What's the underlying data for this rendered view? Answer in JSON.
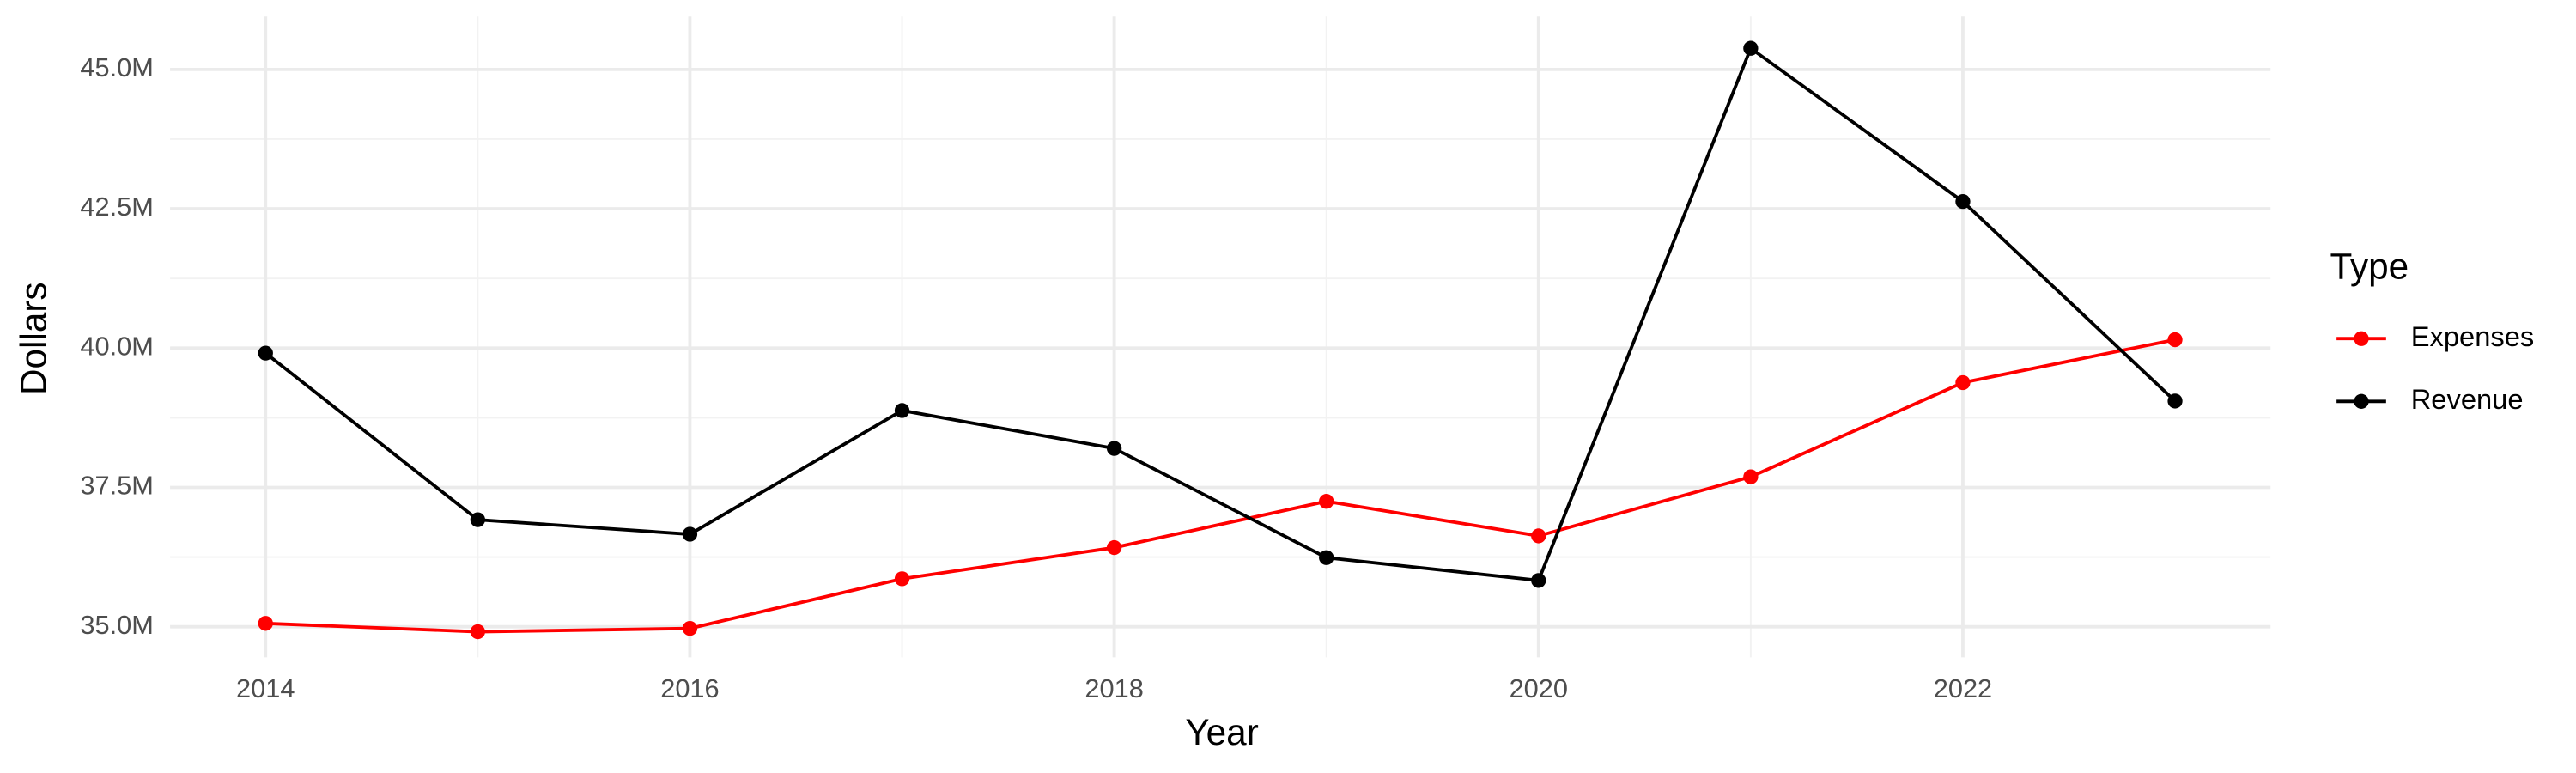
{
  "chart_data": {
    "type": "line",
    "x_label": "Year",
    "y_label": "Dollars",
    "legend_title": "Type",
    "legend": "right",
    "grid": true,
    "x": [
      2014,
      2015,
      2016,
      2017,
      2018,
      2019,
      2020,
      2021,
      2022,
      2023
    ],
    "series": [
      {
        "name": "Expenses",
        "color": "#ff0000",
        "values": [
          35060000,
          34910000,
          34970000,
          35860000,
          36420000,
          37250000,
          36630000,
          37690000,
          39380000,
          40150000
        ]
      },
      {
        "name": "Revenue",
        "color": "#000000",
        "values": [
          39910000,
          36920000,
          36660000,
          38880000,
          38200000,
          36240000,
          35830000,
          45380000,
          42630000,
          39050000
        ]
      }
    ],
    "xlim": [
      2013.55,
      2023.45
    ],
    "xticks": [
      2014,
      2016,
      2018,
      2020,
      2022
    ],
    "ylim": [
      34450000,
      45950000
    ],
    "yticks": [
      {
        "value": 35000000,
        "label": "35.0M"
      },
      {
        "value": 37500000,
        "label": "37.5M"
      },
      {
        "value": 40000000,
        "label": "40.0M"
      },
      {
        "value": 42500000,
        "label": "42.5M"
      },
      {
        "value": 45000000,
        "label": "45.0M"
      }
    ]
  }
}
